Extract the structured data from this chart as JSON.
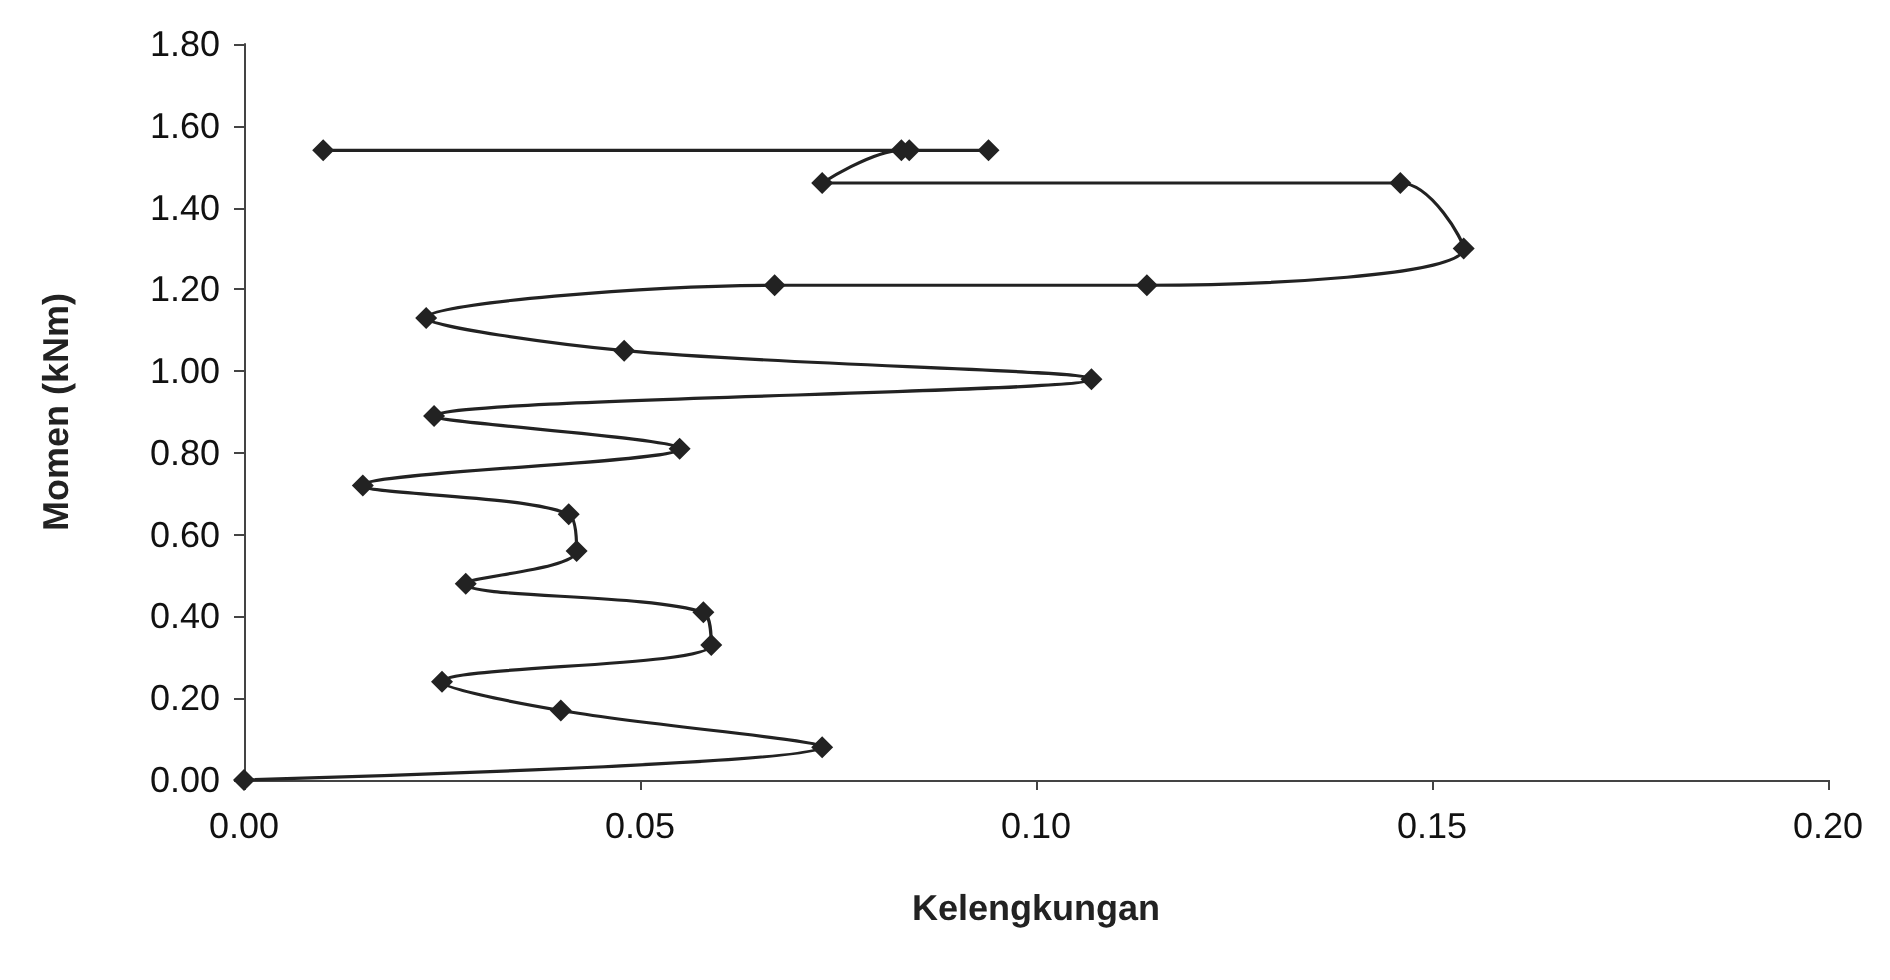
{
  "chart_data": {
    "type": "line",
    "xlabel": "Kelengkungan",
    "ylabel": "Momen (kNm)",
    "x": [
      0,
      0.073,
      0.04,
      0.025,
      0.059,
      0.058,
      0.028,
      0.042,
      0.041,
      0.015,
      0.055,
      0.024,
      0.107,
      0.048,
      0.023,
      0.067,
      0.114,
      0.154,
      0.146,
      0.073,
      0.083,
      0.094,
      0.084,
      0.01
    ],
    "series": [
      {
        "color": "#222222",
        "values": [
          0,
          0.08,
          0.17,
          0.24,
          0.33,
          0.41,
          0.48,
          0.56,
          0.65,
          0.72,
          0.81,
          0.89,
          0.98,
          1.05,
          1.13,
          1.21,
          1.21,
          1.3,
          1.46,
          1.46,
          1.54,
          1.54,
          1.54,
          1.54
        ]
      }
    ],
    "xlim": [
      0,
      0.2
    ],
    "xticks": [
      {
        "value": 0,
        "label": "0.00"
      },
      {
        "value": 0.05,
        "label": "0.05"
      },
      {
        "value": 0.1,
        "label": "0.10"
      },
      {
        "value": 0.15,
        "label": "0.15"
      },
      {
        "value": 0.2,
        "label": "0.20"
      }
    ],
    "ylim": [
      0,
      1.8
    ],
    "yticks": [
      {
        "value": 0,
        "label": "0.00"
      },
      {
        "value": 0.2,
        "label": "0.20"
      },
      {
        "value": 0.4,
        "label": "0.40"
      },
      {
        "value": 0.6,
        "label": "0.60"
      },
      {
        "value": 0.8,
        "label": "0.80"
      },
      {
        "value": 1.0,
        "label": "1.00"
      },
      {
        "value": 1.2,
        "label": "1.20"
      },
      {
        "value": 1.4,
        "label": "1.40"
      },
      {
        "value": 1.6,
        "label": "1.60"
      },
      {
        "value": 1.8,
        "label": "1.80"
      }
    ],
    "grid": false,
    "marker": "diamond",
    "line_style": "solid"
  }
}
